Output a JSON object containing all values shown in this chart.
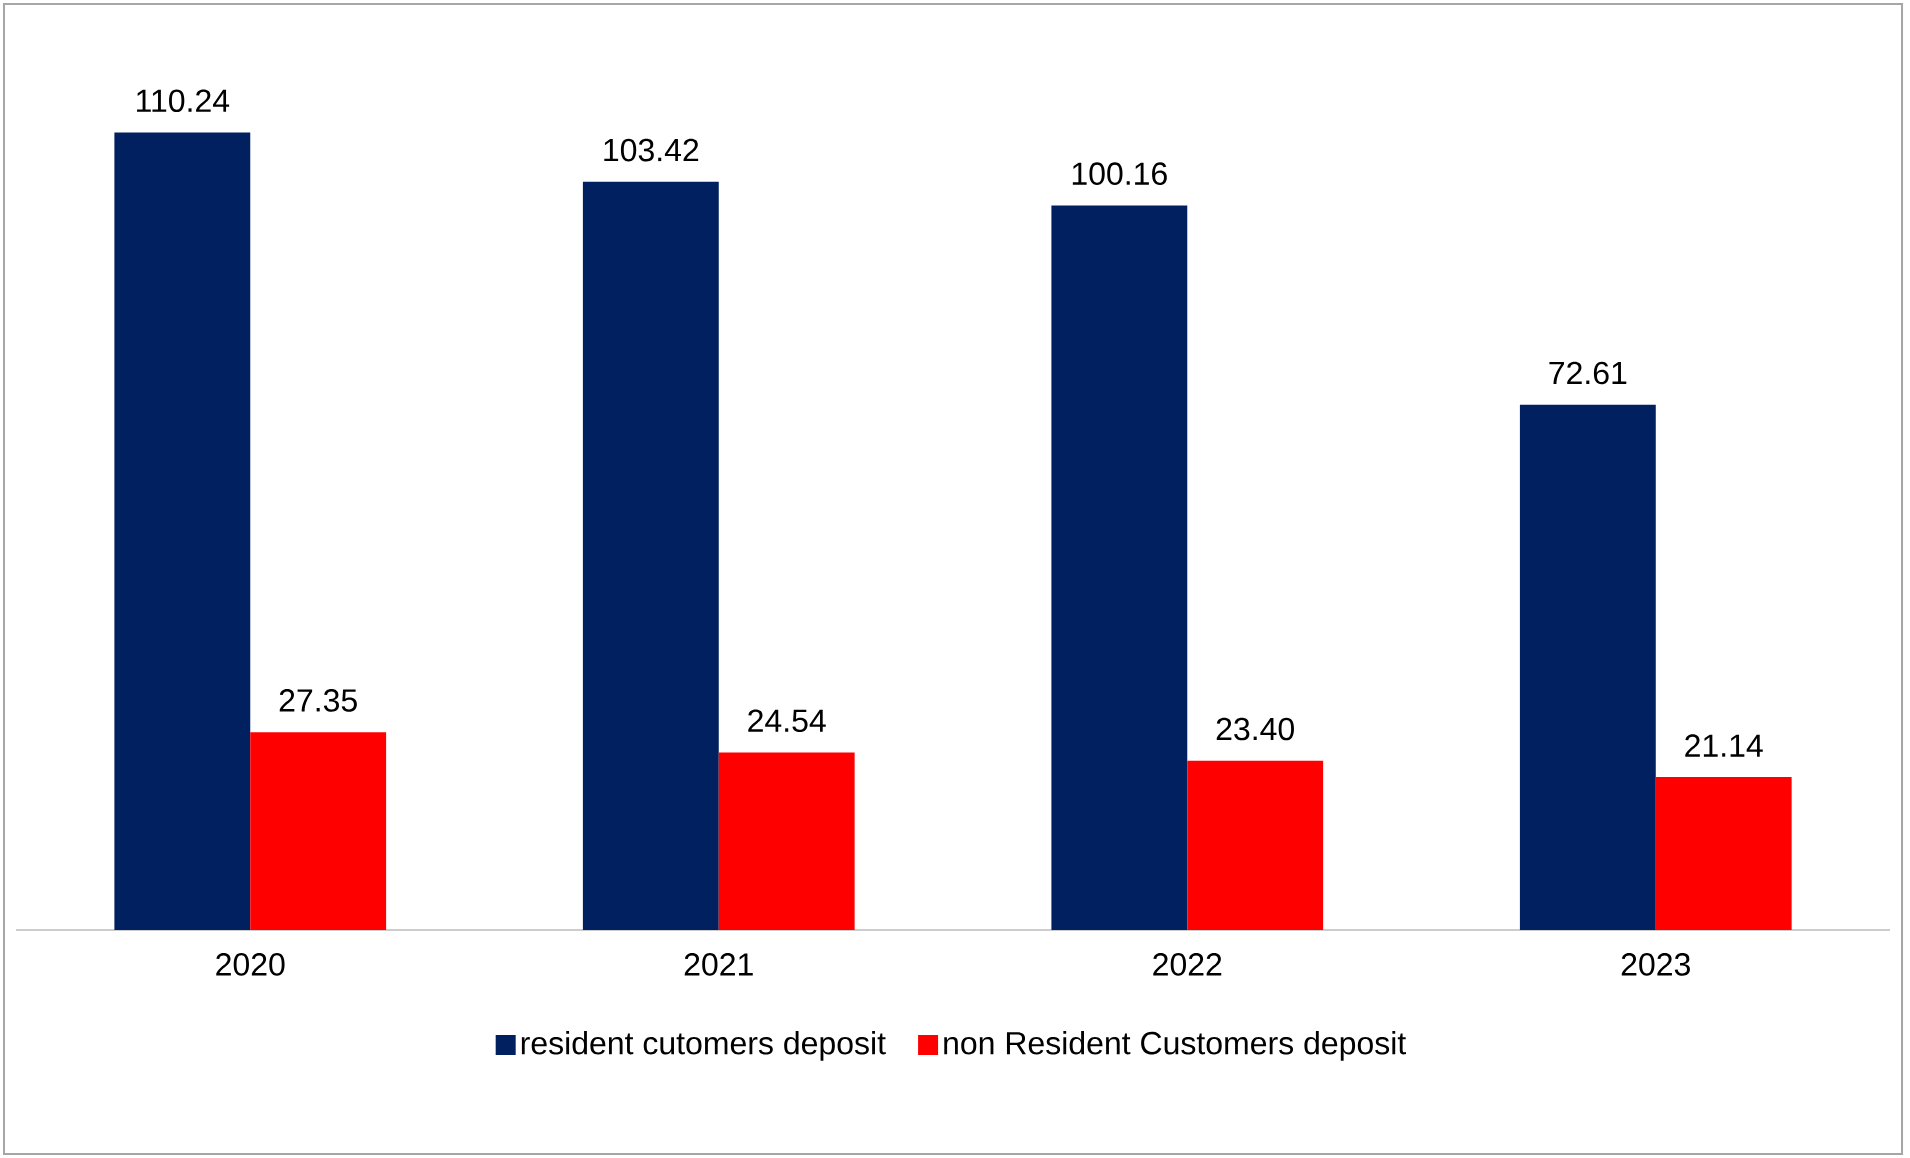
{
  "chart_data": {
    "type": "bar",
    "categories": [
      "2020",
      "2021",
      "2022",
      "2023"
    ],
    "series": [
      {
        "name": "resident cutomers deposit",
        "color": "#002060",
        "values": [
          110.24,
          103.42,
          100.16,
          72.61
        ],
        "value_labels": [
          "110.24",
          "103.42",
          "100.16",
          "72.61"
        ]
      },
      {
        "name": "non Resident Customers deposit",
        "color": "#ff0000",
        "values": [
          27.35,
          24.54,
          23.4,
          21.14
        ],
        "value_labels": [
          "27.35",
          "24.54",
          "23.40",
          "21.14"
        ]
      }
    ],
    "ylim": [
      0,
      128
    ],
    "tick_labels": "x",
    "legend": "bottom"
  }
}
